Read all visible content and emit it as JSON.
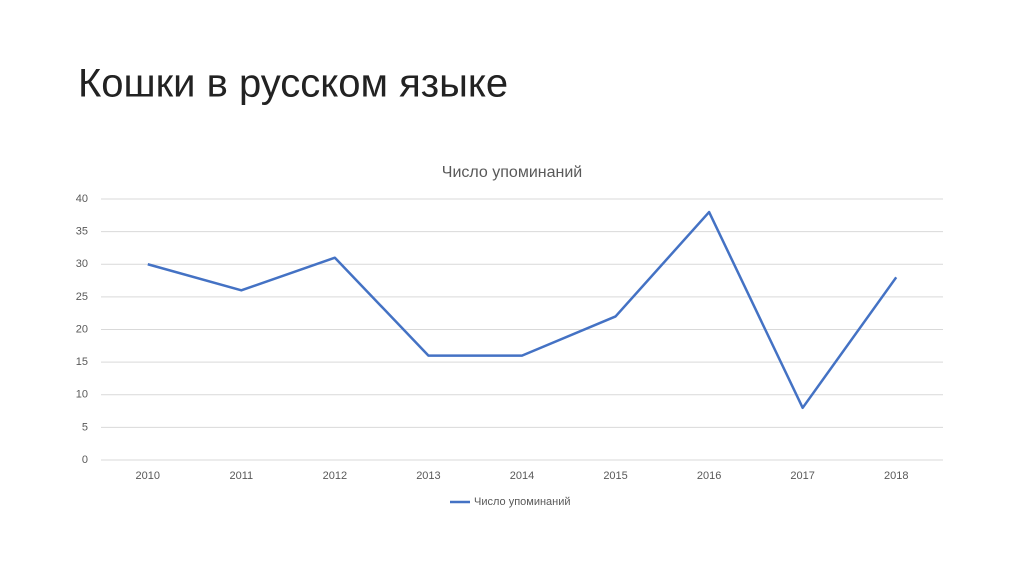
{
  "slide_title": "Кошки в русском языке",
  "chart_data": {
    "type": "line",
    "title": "Число упоминаний",
    "categories": [
      "2010",
      "2011",
      "2012",
      "2013",
      "2014",
      "2015",
      "2016",
      "2017",
      "2018"
    ],
    "series": [
      {
        "name": "Число упоминаний",
        "color": "#4472c4",
        "values": [
          30,
          26,
          31,
          16,
          16,
          22,
          38,
          8,
          28
        ]
      }
    ],
    "ylim": [
      0,
      40
    ],
    "yticks": [
      0,
      5,
      10,
      15,
      20,
      25,
      30,
      35,
      40
    ],
    "grid": true,
    "legend": "bottom"
  }
}
